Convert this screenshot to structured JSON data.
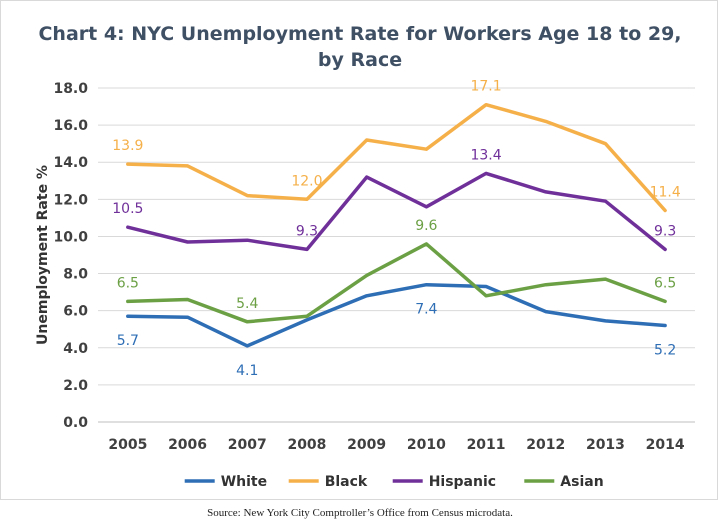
{
  "chart_data": {
    "type": "line",
    "title_lines": [
      "Chart 4: NYC Unemployment Rate for Workers Age 18 to 29,",
      "by Race"
    ],
    "ylabel": "Unemployment Rate %",
    "xlabel": "",
    "ylim": [
      0,
      18
    ],
    "y_ticks": [
      "0.0",
      "2.0",
      "4.0",
      "6.0",
      "8.0",
      "10.0",
      "12.0",
      "14.0",
      "16.0",
      "18.0"
    ],
    "categories": [
      "2005",
      "2006",
      "2007",
      "2008",
      "2009",
      "2010",
      "2011",
      "2012",
      "2013",
      "2014"
    ],
    "grid": true,
    "legend_position": "bottom",
    "series": [
      {
        "name": "White",
        "color": "#2e6eb5",
        "values": [
          5.7,
          5.65,
          4.1,
          5.5,
          6.8,
          7.4,
          7.3,
          5.95,
          5.45,
          5.2
        ]
      },
      {
        "name": "Black",
        "color": "#f5b04a",
        "values": [
          13.9,
          13.8,
          12.2,
          12.0,
          15.2,
          14.7,
          17.1,
          16.2,
          15.0,
          11.4
        ]
      },
      {
        "name": "Hispanic",
        "color": "#70309a",
        "values": [
          10.5,
          9.7,
          9.8,
          9.3,
          13.2,
          11.6,
          13.4,
          12.4,
          11.9,
          9.3
        ]
      },
      {
        "name": "Asian",
        "color": "#6ca045",
        "values": [
          6.5,
          6.6,
          5.4,
          5.7,
          7.9,
          9.6,
          6.8,
          7.4,
          7.7,
          6.5
        ]
      }
    ],
    "data_labels": [
      {
        "series": 1,
        "index": 0,
        "text": "13.9"
      },
      {
        "series": 1,
        "index": 3,
        "text": "12.0"
      },
      {
        "series": 1,
        "index": 6,
        "text": "17.1"
      },
      {
        "series": 1,
        "index": 9,
        "text": "11.4"
      },
      {
        "series": 2,
        "index": 0,
        "text": "10.5"
      },
      {
        "series": 2,
        "index": 3,
        "text": "9.3"
      },
      {
        "series": 2,
        "index": 6,
        "text": "13.4"
      },
      {
        "series": 2,
        "index": 9,
        "text": "9.3"
      },
      {
        "series": 3,
        "index": 0,
        "text": "6.5"
      },
      {
        "series": 3,
        "index": 2,
        "text": "5.4"
      },
      {
        "series": 3,
        "index": 5,
        "text": "9.6"
      },
      {
        "series": 3,
        "index": 9,
        "text": "6.5"
      },
      {
        "series": 0,
        "index": 0,
        "text": "5.7"
      },
      {
        "series": 0,
        "index": 2,
        "text": "4.1"
      },
      {
        "series": 0,
        "index": 5,
        "text": "7.4"
      },
      {
        "series": 0,
        "index": 9,
        "text": "5.2"
      }
    ],
    "source": "Source: New York City Comptroller’s Office from Census microdata."
  }
}
